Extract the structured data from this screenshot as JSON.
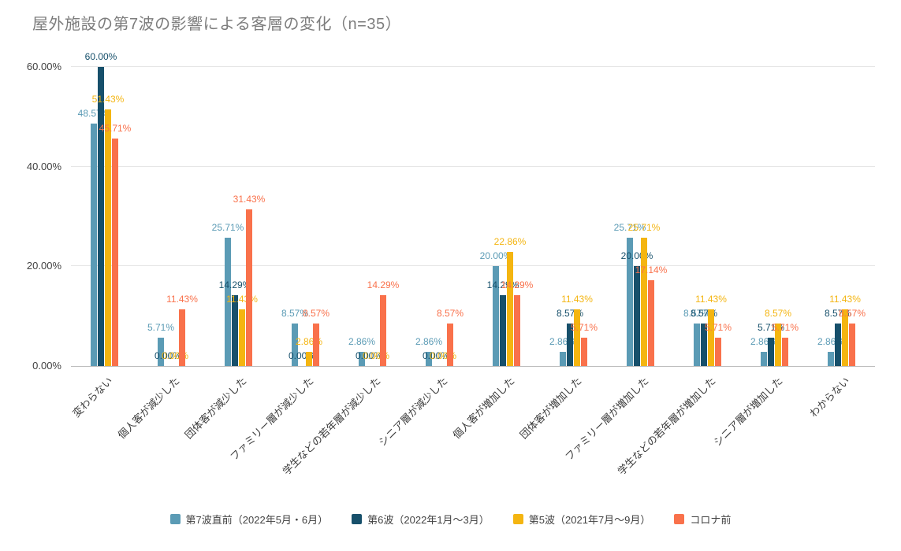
{
  "chart_data": {
    "type": "bar",
    "title": "屋外施設の第7波の影響による客層の変化（n=35）",
    "title_color": "#7d7d7d",
    "categories": [
      "変わらない",
      "個人客が減少した",
      "団体客が減少した",
      "ファミリー層が減少した",
      "学生などの若年層が減少した",
      "シニア層が減少した",
      "個人客が増加した",
      "団体客が増加した",
      "ファミリー層が増加した",
      "学生などの若年層が増加した",
      "シニア層が増加した",
      "わからない"
    ],
    "series": [
      {
        "name": "第7波直前（2022年5月・6月）",
        "color": "#5b9bb5",
        "values": [
          48.57,
          5.71,
          25.71,
          8.57,
          2.86,
          2.86,
          20.0,
          2.86,
          25.71,
          8.57,
          2.86,
          2.86
        ]
      },
      {
        "name": "第6波（2022年1月～3月）",
        "color": "#17506b",
        "values": [
          60.0,
          0.0,
          14.29,
          0.0,
          0.0,
          0.0,
          14.29,
          8.57,
          20.0,
          8.57,
          5.71,
          8.57
        ]
      },
      {
        "name": "第5波（2021年7月～9月）",
        "color": "#f4b511",
        "values": [
          51.43,
          0.0,
          11.43,
          2.86,
          0.0,
          0.0,
          22.86,
          11.43,
          25.71,
          11.43,
          8.57,
          11.43
        ]
      },
      {
        "name": "コロナ前",
        "color": "#f9714b",
        "values": [
          45.71,
          11.43,
          31.43,
          8.57,
          14.29,
          8.57,
          14.29,
          5.71,
          17.14,
          5.71,
          5.71,
          8.57
        ]
      }
    ],
    "y_ticks": [
      "0.00%",
      "20.00%",
      "40.00%",
      "60.00%"
    ],
    "ylim": [
      0,
      60
    ],
    "grid": true,
    "value_label_format": "0.00%",
    "legend_position": "bottom"
  }
}
